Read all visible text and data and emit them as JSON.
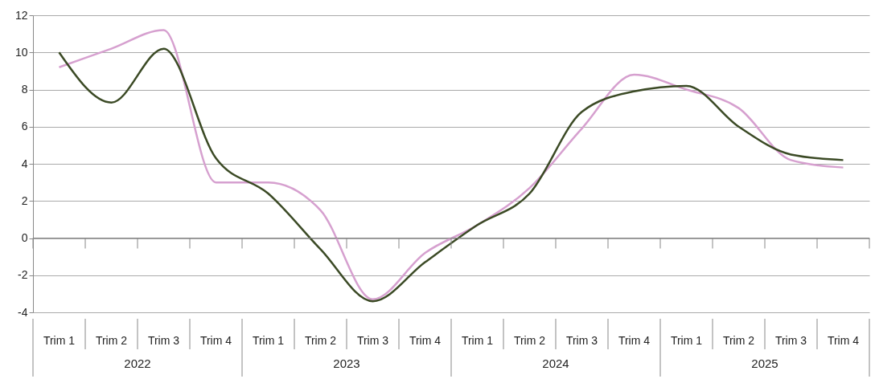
{
  "chart_data": {
    "type": "line",
    "categories": [
      "Trim 1",
      "Trim 2",
      "Trim 3",
      "Trim 4",
      "Trim 1",
      "Trim 2",
      "Trim 3",
      "Trim 4",
      "Trim 1",
      "Trim 2",
      "Trim 3",
      "Trim 4",
      "Trim 1",
      "Trim 2",
      "Trim 3",
      "Trim 4"
    ],
    "series": [
      {
        "color": "#d6a0cf",
        "values": [
          9.2,
          10.2,
          11.2,
          3.0,
          3.0,
          1.5,
          -3.3,
          -0.8,
          0.7,
          2.7,
          5.9,
          8.8,
          8.0,
          7.0,
          4.2,
          3.8
        ]
      },
      {
        "color": "#3b4a25",
        "values": [
          10.0,
          7.3,
          10.2,
          4.3,
          2.4,
          -0.6,
          -3.4,
          -1.3,
          0.7,
          2.4,
          6.8,
          7.9,
          8.2,
          6.0,
          4.5,
          4.2
        ]
      }
    ],
    "annotations": [
      "2022",
      "2023",
      "2024",
      "2025"
    ],
    "ylim": [
      -4,
      12
    ],
    "yticks": [
      -4,
      -2,
      0,
      2,
      4,
      6,
      8,
      10,
      12
    ],
    "grid": "y",
    "legend": false,
    "marker": "none",
    "line_style": "solid"
  }
}
